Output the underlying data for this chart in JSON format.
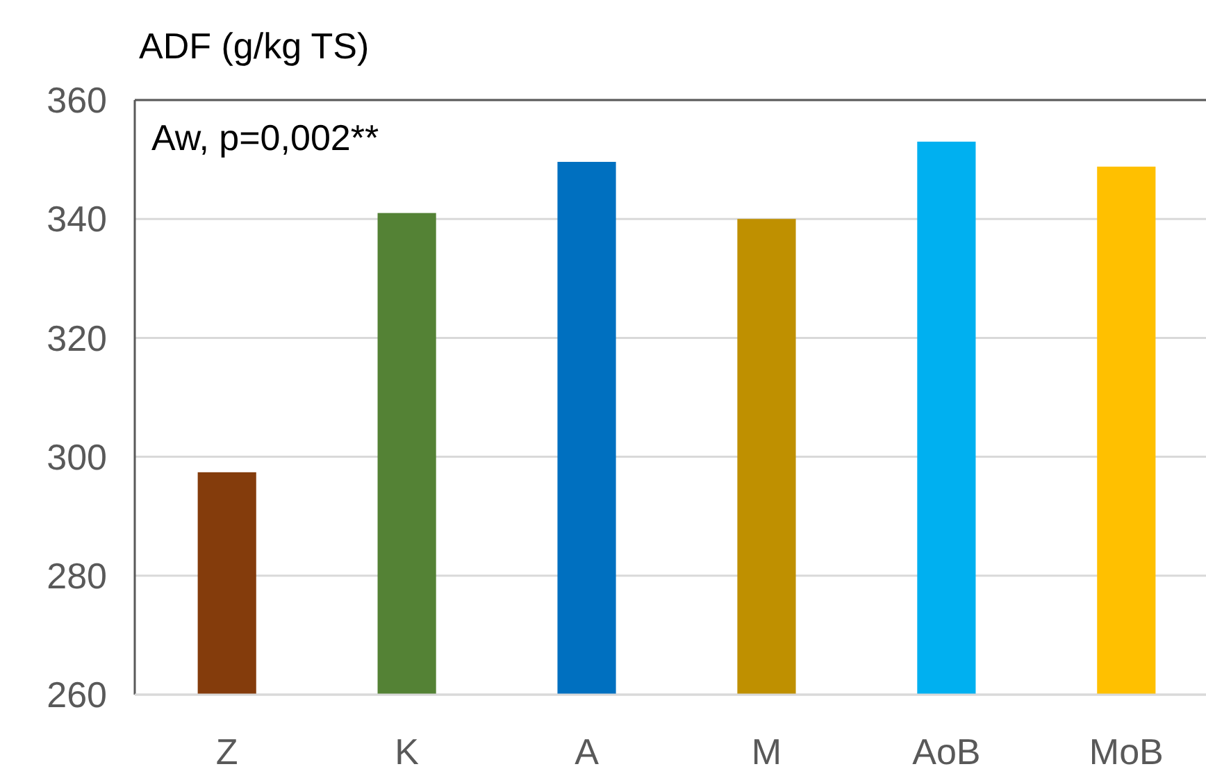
{
  "chart_data": {
    "type": "bar",
    "ylabel": "ADF (g/kg TS)",
    "annotations": [
      "Aw, p=0,002**"
    ],
    "categories": [
      "Z",
      "K",
      "A",
      "M",
      "AoB",
      "MoB"
    ],
    "values": [
      297.4,
      341,
      349.6,
      340,
      353,
      348.8
    ],
    "colors": [
      "#843c0c",
      "#548235",
      "#0070c0",
      "#bf9000",
      "#00b0f0",
      "#ffc000"
    ],
    "ylim": [
      260,
      360
    ],
    "yticks": [
      260,
      280,
      300,
      320,
      340,
      360
    ],
    "grid": "y"
  }
}
